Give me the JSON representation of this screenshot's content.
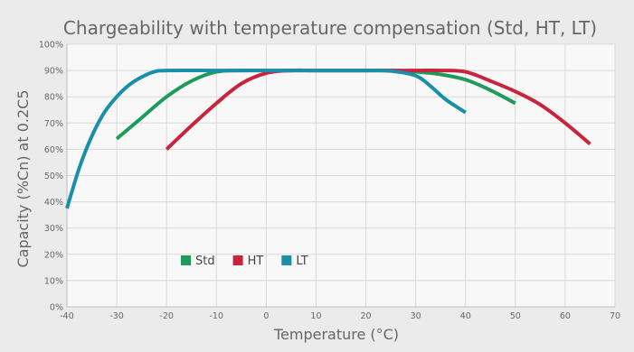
{
  "chart_data": {
    "type": "line",
    "title": "Chargeability with temperature compensation (Std, HT, LT)",
    "xlabel": "Temperature (°C)",
    "ylabel": "Capacity (%Cn) at 0.2C5",
    "xlim": [
      -40,
      70
    ],
    "ylim": [
      0,
      100
    ],
    "x_ticks": [
      "-40",
      "-30",
      "-20",
      "-10",
      "0",
      "10",
      "20",
      "30",
      "40",
      "50",
      "60",
      "70"
    ],
    "y_ticks": [
      "0%",
      "10%",
      "20%",
      "30%",
      "40%",
      "50%",
      "60%",
      "70%",
      "80%",
      "90%",
      "100%"
    ],
    "grid": true,
    "legend_position": "bottom-left",
    "series": [
      {
        "name": "Std",
        "color": "#1e9a5a",
        "points": [
          [
            -30,
            64
          ],
          [
            -25,
            72
          ],
          [
            -20,
            80
          ],
          [
            -15,
            86
          ],
          [
            -10,
            89.5
          ],
          [
            -5,
            90
          ],
          [
            0,
            90
          ],
          [
            10,
            90
          ],
          [
            20,
            90
          ],
          [
            25,
            90
          ],
          [
            30,
            89.5
          ],
          [
            35,
            88.5
          ],
          [
            40,
            86.5
          ],
          [
            45,
            82.5
          ],
          [
            50,
            77.5
          ]
        ]
      },
      {
        "name": "HT",
        "color": "#c8243c",
        "points": [
          [
            -20,
            60
          ],
          [
            -15,
            69
          ],
          [
            -10,
            77.5
          ],
          [
            -5,
            85
          ],
          [
            0,
            89
          ],
          [
            5,
            90
          ],
          [
            10,
            90
          ],
          [
            20,
            90
          ],
          [
            30,
            90
          ],
          [
            35,
            90
          ],
          [
            40,
            89.5
          ],
          [
            45,
            86
          ],
          [
            50,
            82
          ],
          [
            55,
            77
          ],
          [
            60,
            70
          ],
          [
            65,
            62
          ]
        ]
      },
      {
        "name": "LT",
        "color": "#1a8fa8",
        "points": [
          [
            -40,
            37.5
          ],
          [
            -37.5,
            53
          ],
          [
            -35,
            65
          ],
          [
            -32.5,
            74
          ],
          [
            -30,
            80
          ],
          [
            -27.5,
            84.5
          ],
          [
            -25,
            87.5
          ],
          [
            -22.5,
            89.5
          ],
          [
            -20,
            90
          ],
          [
            -10,
            90
          ],
          [
            0,
            90
          ],
          [
            10,
            90
          ],
          [
            20,
            90
          ],
          [
            25,
            89.8
          ],
          [
            30,
            88
          ],
          [
            33,
            84
          ],
          [
            36,
            79
          ],
          [
            40,
            74
          ]
        ]
      }
    ]
  }
}
